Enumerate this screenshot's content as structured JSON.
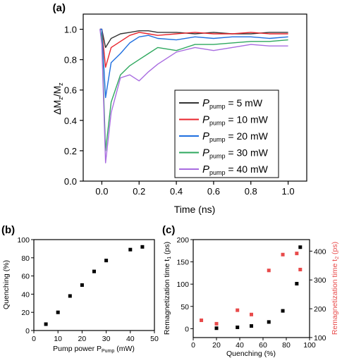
{
  "chart_data": [
    {
      "panel": "(a)",
      "type": "line",
      "xlabel": "Time (ns)",
      "ylabel": "ΔM_z/M_z",
      "xlim": [
        -0.1,
        1.1
      ],
      "ylim": [
        0,
        1.1
      ],
      "xticks": [
        "0.0",
        "0.2",
        "0.4",
        "0.6",
        "0.8",
        "1.0"
      ],
      "yticks": [
        "0.0",
        "0.2",
        "0.4",
        "0.6",
        "0.8",
        "1.0"
      ],
      "legend_placement": "bottom-right",
      "series": [
        {
          "name": "P_pump = 5 mW",
          "legend_main": "P",
          "legend_sub": "pump",
          "legend_tail": " = 5 mW",
          "color": "#333333",
          "x": [
            -0.01,
            0.0,
            0.02,
            0.05,
            0.1,
            0.15,
            0.2,
            0.25,
            0.3,
            0.4,
            0.5,
            0.6,
            0.7,
            0.8,
            0.9,
            1.0
          ],
          "y": [
            1.0,
            1.0,
            0.88,
            0.94,
            0.97,
            0.98,
            0.99,
            0.99,
            0.98,
            0.98,
            0.97,
            0.98,
            0.97,
            0.97,
            0.98,
            0.98
          ]
        },
        {
          "name": "P_pump = 10 mW",
          "legend_main": "P",
          "legend_sub": "pump",
          "legend_tail": " = 10 mW",
          "color": "#e8252d",
          "x": [
            -0.01,
            0.0,
            0.02,
            0.05,
            0.1,
            0.15,
            0.2,
            0.25,
            0.3,
            0.4,
            0.5,
            0.6,
            0.7,
            0.8,
            0.9,
            1.0
          ],
          "y": [
            1.0,
            1.0,
            0.75,
            0.88,
            0.92,
            0.96,
            0.98,
            0.97,
            0.96,
            0.97,
            0.98,
            0.97,
            0.97,
            0.98,
            0.97,
            0.97
          ]
        },
        {
          "name": "P_pump = 20 mW",
          "legend_main": "P",
          "legend_sub": "pump",
          "legend_tail": " = 20 mW",
          "color": "#1f6fe0",
          "x": [
            -0.01,
            0.0,
            0.02,
            0.05,
            0.1,
            0.15,
            0.2,
            0.25,
            0.3,
            0.4,
            0.5,
            0.6,
            0.7,
            0.8,
            0.9,
            1.0
          ],
          "y": [
            1.0,
            1.0,
            0.55,
            0.78,
            0.84,
            0.91,
            0.95,
            0.96,
            0.94,
            0.93,
            0.95,
            0.94,
            0.95,
            0.95,
            0.94,
            0.95
          ]
        },
        {
          "name": "P_pump = 30 mW",
          "legend_main": "P",
          "legend_sub": "pump",
          "legend_tail": " = 30 mW",
          "color": "#2ea85e",
          "x": [
            -0.01,
            0.0,
            0.02,
            0.05,
            0.1,
            0.15,
            0.2,
            0.25,
            0.3,
            0.4,
            0.5,
            0.6,
            0.7,
            0.8,
            0.9,
            1.0
          ],
          "y": [
            1.0,
            0.95,
            0.2,
            0.52,
            0.7,
            0.76,
            0.8,
            0.84,
            0.88,
            0.86,
            0.9,
            0.9,
            0.91,
            0.92,
            0.92,
            0.93
          ]
        },
        {
          "name": "P_pump = 40 mW",
          "legend_main": "P",
          "legend_sub": "pump",
          "legend_tail": " = 40 mW",
          "color": "#a86ce0",
          "x": [
            -0.01,
            0.0,
            0.02,
            0.05,
            0.1,
            0.15,
            0.2,
            0.25,
            0.3,
            0.4,
            0.5,
            0.6,
            0.7,
            0.8,
            0.9,
            1.0
          ],
          "y": [
            1.0,
            0.9,
            0.12,
            0.45,
            0.68,
            0.7,
            0.66,
            0.72,
            0.77,
            0.85,
            0.88,
            0.86,
            0.88,
            0.9,
            0.89,
            0.89
          ]
        }
      ]
    },
    {
      "panel": "(b)",
      "type": "scatter",
      "xlabel_main": "Pump power P",
      "xlabel_sub": "Pump",
      "xlabel_tail": " (mW)",
      "ylabel": "Quenching (%)",
      "xlim": [
        0,
        50
      ],
      "ylim": [
        0,
        100
      ],
      "xticks": [
        "0",
        "10",
        "20",
        "30",
        "40",
        "50"
      ],
      "yticks": [
        "0",
        "20",
        "40",
        "60",
        "80",
        "100"
      ],
      "color": "#000000",
      "x": [
        5,
        10,
        15,
        20,
        25,
        30,
        40,
        45
      ],
      "y": [
        7,
        20,
        38,
        50,
        65,
        77,
        89,
        92
      ]
    },
    {
      "panel": "(c)",
      "type": "scatter",
      "xlabel": "Quenching (%)",
      "ylabel_left_main": "Remagnetization time t",
      "ylabel_left_sub": "1",
      "ylabel_left_tail": " (ps)",
      "ylabel_right_main": "Remagnetization time t",
      "ylabel_right_sub": "2",
      "ylabel_right_tail": " (ps)",
      "xlim": [
        0,
        100
      ],
      "ylim_left": [
        -20,
        200
      ],
      "ylim_right": [
        100,
        440
      ],
      "xticks": [
        "0",
        "20",
        "40",
        "60",
        "80",
        "100"
      ],
      "yticks_left": [
        "0",
        "50",
        "100",
        "150",
        "200"
      ],
      "yticks_right": [
        "100",
        "200",
        "300",
        "400"
      ],
      "series": [
        {
          "axis": "left",
          "color": "#000000",
          "x": [
            20,
            38,
            50,
            65,
            77,
            89,
            92
          ],
          "y": [
            1,
            3,
            6,
            15,
            40,
            101,
            183
          ]
        },
        {
          "axis": "right",
          "color": "#e84a4a",
          "x": [
            7,
            20,
            38,
            50,
            65,
            77,
            89,
            92
          ],
          "y": [
            160,
            148,
            195,
            180,
            333,
            388,
            392,
            336
          ]
        }
      ]
    }
  ]
}
